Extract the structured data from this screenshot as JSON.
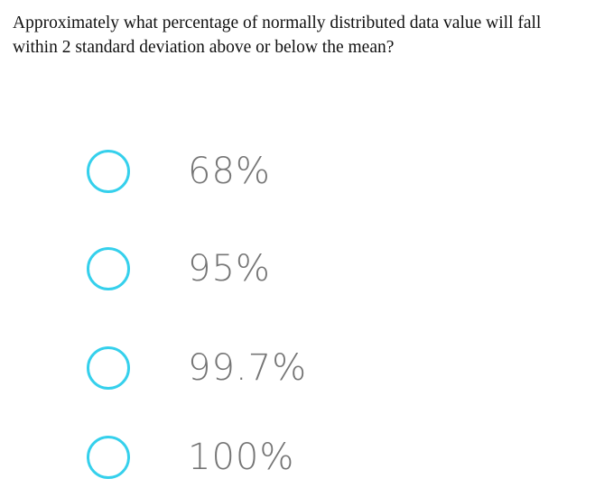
{
  "question": {
    "text": "Approximately what percentage of normally distributed data value will fall within 2 standard deviation above or below the mean?"
  },
  "options": [
    {
      "label": "68%"
    },
    {
      "label": "95%"
    },
    {
      "label": "99.7%"
    },
    {
      "label": "100%"
    }
  ],
  "colors": {
    "radio_border": "#35d0ec",
    "option_text": "#757575",
    "question_text": "#111111"
  }
}
